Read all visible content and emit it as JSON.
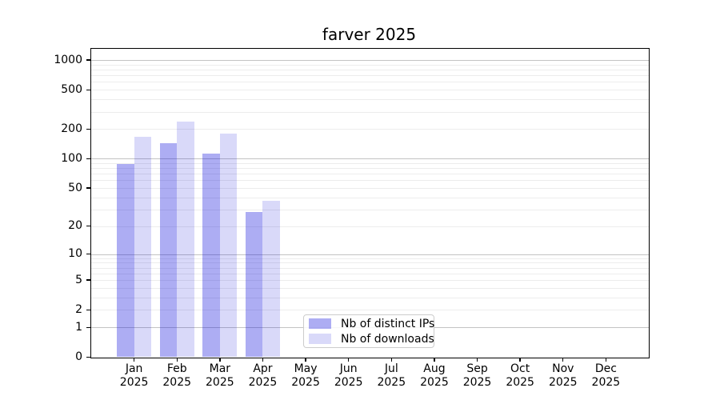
{
  "chart_data": {
    "type": "bar",
    "title": "farver 2025",
    "year": "2025",
    "scale": "log1p",
    "categories": [
      "Jan",
      "Feb",
      "Mar",
      "Apr",
      "May",
      "Jun",
      "Jul",
      "Aug",
      "Sep",
      "Oct",
      "Nov",
      "Dec"
    ],
    "series": [
      {
        "key": "distinct-ips",
        "name": "Nb of distinct IPs",
        "color": "rgba(8,8,218,0.335)",
        "values": [
          89,
          145,
          113,
          28,
          null,
          null,
          null,
          null,
          null,
          null,
          null,
          null
        ]
      },
      {
        "key": "downloads",
        "name": "Nb of downloads",
        "color": "rgba(0,0,215,0.148)",
        "values": [
          166,
          238,
          179,
          37,
          null,
          null,
          null,
          null,
          null,
          null,
          null,
          null
        ]
      }
    ],
    "y_axis": {
      "ticks": [
        0,
        1,
        2,
        5,
        10,
        20,
        50,
        100,
        200,
        500,
        1000
      ],
      "major_gridlines": [
        1,
        10,
        100,
        1000
      ],
      "ylim": [
        0,
        1292
      ]
    },
    "legend": {
      "position": "bottom-center-left"
    },
    "colors": {
      "grid_major": "#c3c3c3",
      "grid_minor": "#ececec",
      "axis": "#000000",
      "legend_border": "#cccccc",
      "background": "#ffffff"
    }
  }
}
